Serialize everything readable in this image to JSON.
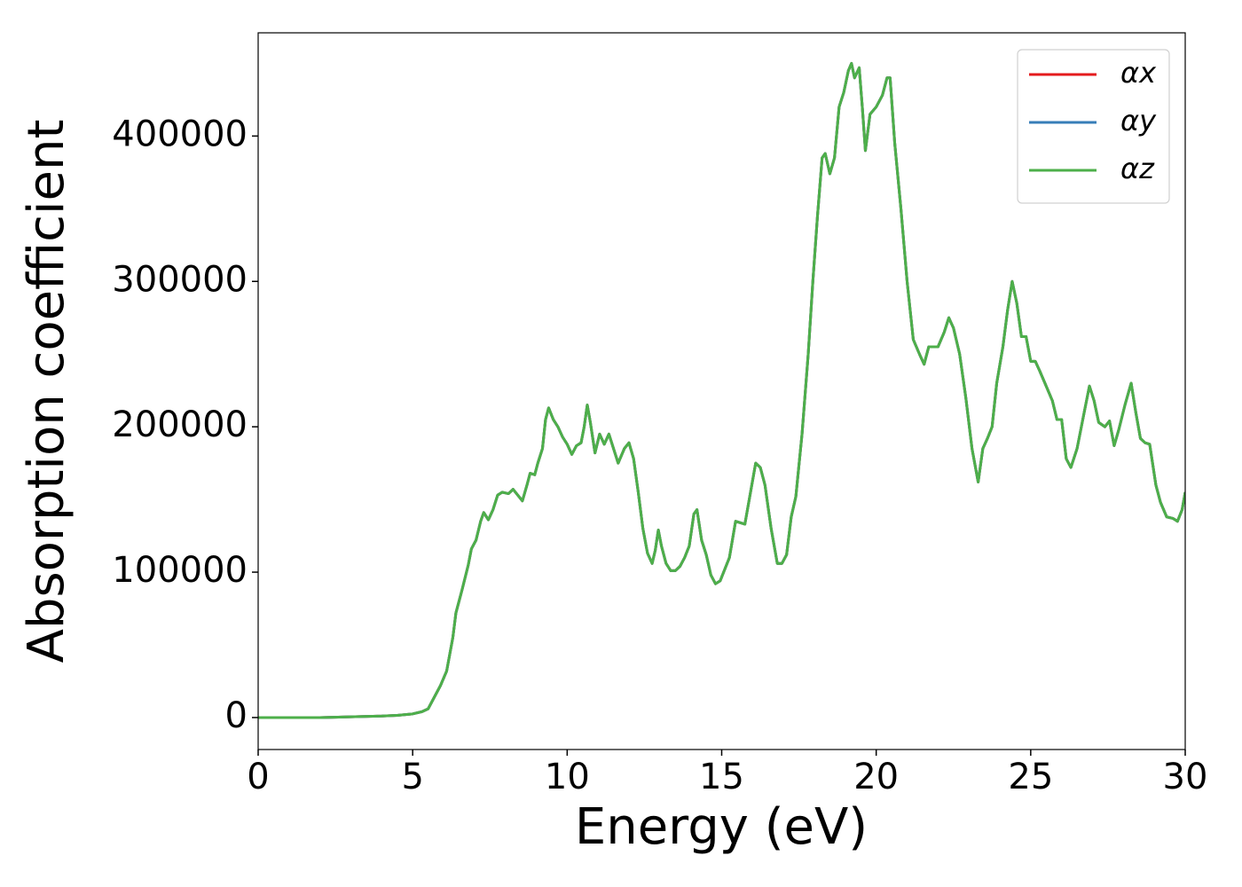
{
  "chart_data": {
    "type": "line",
    "xlabel": "Energy (eV)",
    "ylabel": "Absorption coefficient",
    "xlim": [
      0,
      30
    ],
    "xticks": [
      0,
      5,
      10,
      15,
      20,
      25,
      30
    ],
    "ylim": [
      -22000,
      471000
    ],
    "yticks": [
      0,
      100000,
      200000,
      300000,
      400000
    ],
    "legend": "upper right",
    "x": [
      0,
      1,
      2,
      3,
      4,
      4.5,
      5,
      5.3,
      5.5,
      5.7,
      5.9,
      6.1,
      6.3,
      6.4,
      6.6,
      6.8,
      6.9,
      7.05,
      7.2,
      7.3,
      7.45,
      7.6,
      7.75,
      7.9,
      8.1,
      8.25,
      8.4,
      8.55,
      8.7,
      8.8,
      8.95,
      9.05,
      9.2,
      9.3,
      9.4,
      9.55,
      9.7,
      9.85,
      10,
      10.15,
      10.3,
      10.45,
      10.55,
      10.65,
      10.75,
      10.9,
      11.05,
      11.2,
      11.35,
      11.5,
      11.65,
      11.85,
      12,
      12.15,
      12.3,
      12.45,
      12.6,
      12.75,
      12.85,
      12.95,
      13.05,
      13.2,
      13.35,
      13.5,
      13.65,
      13.8,
      13.95,
      14.1,
      14.2,
      14.35,
      14.5,
      14.65,
      14.8,
      14.95,
      15.1,
      15.25,
      15.45,
      15.6,
      15.75,
      15.95,
      16.1,
      16.25,
      16.4,
      16.6,
      16.8,
      16.95,
      17.1,
      17.25,
      17.4,
      17.6,
      17.8,
      17.95,
      18.1,
      18.25,
      18.35,
      18.5,
      18.65,
      18.8,
      18.95,
      19.1,
      19.2,
      19.3,
      19.45,
      19.55,
      19.65,
      19.8,
      20,
      20.2,
      20.35,
      20.45,
      20.6,
      20.8,
      21,
      21.2,
      21.4,
      21.55,
      21.7,
      21.85,
      22,
      22.2,
      22.35,
      22.5,
      22.7,
      22.9,
      23.1,
      23.3,
      23.45,
      23.6,
      23.75,
      23.9,
      24.1,
      24.25,
      24.4,
      24.55,
      24.7,
      24.85,
      25,
      25.15,
      25.3,
      25.5,
      25.7,
      25.85,
      26,
      26.15,
      26.3,
      26.5,
      26.75,
      26.9,
      27.05,
      27.2,
      27.4,
      27.55,
      27.7,
      27.85,
      28.05,
      28.25,
      28.4,
      28.55,
      28.7,
      28.85,
      29.05,
      29.2,
      29.4,
      29.6,
      29.75,
      29.9,
      30
    ],
    "series": [
      {
        "name": "αx",
        "color": "#e41a1c",
        "values": [
          0,
          0,
          0,
          500,
          1000,
          1500,
          2500,
          4000,
          6000,
          14000,
          22000,
          32000,
          55000,
          72000,
          88000,
          105000,
          116000,
          122000,
          135000,
          141000,
          136000,
          143000,
          153000,
          155000,
          154000,
          157000,
          153000,
          149000,
          160000,
          168000,
          167000,
          175000,
          185000,
          205000,
          213000,
          205000,
          200000,
          193000,
          188000,
          181000,
          187000,
          189000,
          200000,
          215000,
          203000,
          182000,
          195000,
          188000,
          195000,
          185000,
          175000,
          185000,
          189000,
          178000,
          155000,
          130000,
          113000,
          106000,
          115000,
          129000,
          118000,
          106000,
          101000,
          101000,
          104000,
          110000,
          118000,
          140000,
          143000,
          122000,
          112000,
          98000,
          92000,
          94000,
          102000,
          110000,
          135000,
          134000,
          133000,
          157000,
          175000,
          172000,
          160000,
          130000,
          106000,
          106000,
          112000,
          138000,
          152000,
          195000,
          250000,
          300000,
          345000,
          385000,
          388000,
          374000,
          385000,
          420000,
          430000,
          445000,
          450000,
          440000,
          447000,
          420000,
          390000,
          415000,
          420000,
          428000,
          440000,
          440000,
          395000,
          350000,
          300000,
          260000,
          250000,
          243000,
          255000,
          255000,
          255000,
          265000,
          275000,
          268000,
          250000,
          220000,
          185000,
          162000,
          185000,
          192000,
          200000,
          230000,
          255000,
          280000,
          300000,
          285000,
          262000,
          262000,
          245000,
          245000,
          238000,
          228000,
          218000,
          205000,
          205000,
          178000,
          172000,
          185000,
          212000,
          228000,
          218000,
          203000,
          200000,
          204000,
          187000,
          198000,
          215000,
          230000,
          210000,
          192000,
          189000,
          188000,
          160000,
          148000,
          138000,
          137000,
          135000,
          143000,
          155000
        ]
      },
      {
        "name": "αy",
        "color": "#377eb8",
        "values": [
          0,
          0,
          0,
          500,
          1000,
          1500,
          2500,
          4000,
          6000,
          14000,
          22000,
          32000,
          55000,
          72000,
          88000,
          105000,
          116000,
          122000,
          135000,
          141000,
          136000,
          143000,
          153000,
          155000,
          154000,
          157000,
          153000,
          149000,
          160000,
          168000,
          167000,
          175000,
          185000,
          205000,
          213000,
          205000,
          200000,
          193000,
          188000,
          181000,
          187000,
          189000,
          200000,
          215000,
          203000,
          182000,
          195000,
          188000,
          195000,
          185000,
          175000,
          185000,
          189000,
          178000,
          155000,
          130000,
          113000,
          106000,
          115000,
          129000,
          118000,
          106000,
          101000,
          101000,
          104000,
          110000,
          118000,
          140000,
          143000,
          122000,
          112000,
          98000,
          92000,
          94000,
          102000,
          110000,
          135000,
          134000,
          133000,
          157000,
          175000,
          172000,
          160000,
          130000,
          106000,
          106000,
          112000,
          138000,
          152000,
          195000,
          250000,
          300000,
          345000,
          385000,
          388000,
          374000,
          385000,
          420000,
          430000,
          445000,
          450000,
          440000,
          447000,
          420000,
          390000,
          415000,
          420000,
          428000,
          440000,
          440000,
          395000,
          350000,
          300000,
          260000,
          250000,
          243000,
          255000,
          255000,
          255000,
          265000,
          275000,
          268000,
          250000,
          220000,
          185000,
          162000,
          185000,
          192000,
          200000,
          230000,
          255000,
          280000,
          300000,
          285000,
          262000,
          262000,
          245000,
          245000,
          238000,
          228000,
          218000,
          205000,
          205000,
          178000,
          172000,
          185000,
          212000,
          228000,
          218000,
          203000,
          200000,
          204000,
          187000,
          198000,
          215000,
          230000,
          210000,
          192000,
          189000,
          188000,
          160000,
          148000,
          138000,
          137000,
          135000,
          143000,
          155000
        ]
      },
      {
        "name": "αz",
        "color": "#4daf4a",
        "values": [
          0,
          0,
          0,
          500,
          1000,
          1500,
          2500,
          4000,
          6000,
          14000,
          22000,
          32000,
          55000,
          72000,
          88000,
          105000,
          116000,
          122000,
          135000,
          141000,
          136000,
          143000,
          153000,
          155000,
          154000,
          157000,
          153000,
          149000,
          160000,
          168000,
          167000,
          175000,
          185000,
          205000,
          213000,
          205000,
          200000,
          193000,
          188000,
          181000,
          187000,
          189000,
          200000,
          215000,
          203000,
          182000,
          195000,
          188000,
          195000,
          185000,
          175000,
          185000,
          189000,
          178000,
          155000,
          130000,
          113000,
          106000,
          115000,
          129000,
          118000,
          106000,
          101000,
          101000,
          104000,
          110000,
          118000,
          140000,
          143000,
          122000,
          112000,
          98000,
          92000,
          94000,
          102000,
          110000,
          135000,
          134000,
          133000,
          157000,
          175000,
          172000,
          160000,
          130000,
          106000,
          106000,
          112000,
          138000,
          152000,
          195000,
          250000,
          300000,
          345000,
          385000,
          388000,
          374000,
          385000,
          420000,
          430000,
          445000,
          450000,
          440000,
          447000,
          420000,
          390000,
          415000,
          420000,
          428000,
          440000,
          440000,
          395000,
          350000,
          300000,
          260000,
          250000,
          243000,
          255000,
          255000,
          255000,
          265000,
          275000,
          268000,
          250000,
          220000,
          185000,
          162000,
          185000,
          192000,
          200000,
          230000,
          255000,
          280000,
          300000,
          285000,
          262000,
          262000,
          245000,
          245000,
          238000,
          228000,
          218000,
          205000,
          205000,
          178000,
          172000,
          185000,
          212000,
          228000,
          218000,
          203000,
          200000,
          204000,
          187000,
          198000,
          215000,
          230000,
          210000,
          192000,
          189000,
          188000,
          160000,
          148000,
          138000,
          137000,
          135000,
          143000,
          155000
        ]
      }
    ]
  }
}
